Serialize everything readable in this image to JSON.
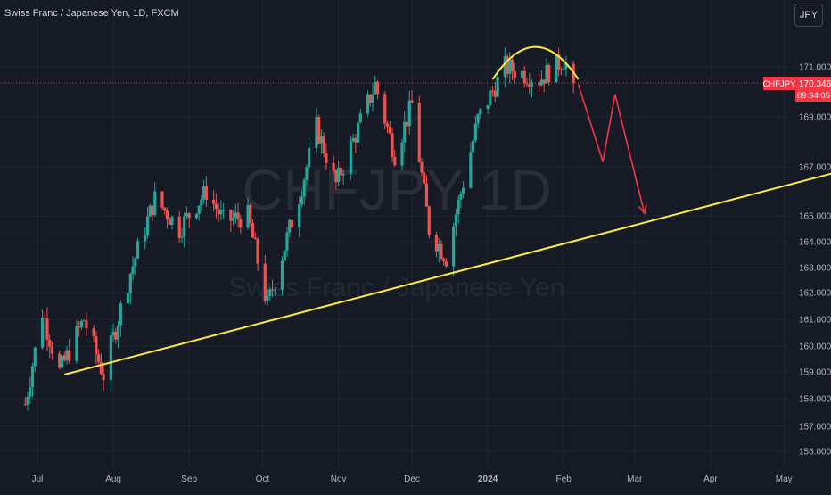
{
  "header": {
    "title": "Swiss Franc / Japanese Yen, 1D, FXCM"
  },
  "currency_button": "JPY",
  "watermark": {
    "symbol": "CHFJPY 1D",
    "name": "Swiss Franc / Japanese Yen"
  },
  "price_label": {
    "symbol": "CHFJPY",
    "price": "170.346",
    "countdown": "09:34:05"
  },
  "colors": {
    "background": "#161a25",
    "up": "#26a69a",
    "down": "#ef5350",
    "trendline": "#ffeb3b",
    "arrow": "#f23645",
    "grid": "#232733",
    "text": "#b2b5be"
  },
  "chart_data": {
    "type": "candlestick",
    "title": "Swiss Franc / Japanese Yen, 1D, FXCM",
    "y_axis_labels": [
      "171.000",
      "169.000",
      "167.000",
      "165.000",
      "164.000",
      "163.000",
      "162.000",
      "161.000",
      "160.000",
      "159.000",
      "158.000",
      "157.000",
      "156.000"
    ],
    "x_axis_labels": [
      "Jul",
      "Aug",
      "Sep",
      "Oct",
      "Nov",
      "Dec",
      "2024",
      "Feb",
      "Mar",
      "Apr",
      "May"
    ],
    "last_price": 170.346,
    "ohlc_anchors": [
      {
        "date": "2023-06-26",
        "close": 157.8
      },
      {
        "date": "2023-07-03",
        "close": 161.3
      },
      {
        "date": "2023-07-10",
        "close": 159.0
      },
      {
        "date": "2023-07-20",
        "close": 161.0
      },
      {
        "date": "2023-07-28",
        "close": 158.9
      },
      {
        "date": "2023-08-08",
        "close": 162.8
      },
      {
        "date": "2023-08-18",
        "close": 165.7
      },
      {
        "date": "2023-08-28",
        "close": 164.5
      },
      {
        "date": "2023-09-08",
        "close": 166.0
      },
      {
        "date": "2023-09-15",
        "close": 164.8
      },
      {
        "date": "2023-09-25",
        "close": 165.0
      },
      {
        "date": "2023-10-03",
        "close": 161.5
      },
      {
        "date": "2023-10-16",
        "close": 165.8
      },
      {
        "date": "2023-10-23",
        "close": 168.6
      },
      {
        "date": "2023-10-31",
        "close": 166.3
      },
      {
        "date": "2023-11-16",
        "close": 170.3
      },
      {
        "date": "2023-11-24",
        "close": 167.5
      },
      {
        "date": "2023-12-01",
        "close": 169.5
      },
      {
        "date": "2023-12-08",
        "close": 164.5
      },
      {
        "date": "2023-12-15",
        "close": 163.4
      },
      {
        "date": "2023-12-28",
        "close": 168.9
      },
      {
        "date": "2024-01-08",
        "close": 171.0
      },
      {
        "date": "2024-01-22",
        "close": 170.5
      },
      {
        "date": "2024-02-01",
        "close": 171.3
      },
      {
        "date": "2024-02-05",
        "close": 170.346
      }
    ],
    "trendline": {
      "start": {
        "date": "2023-07-12",
        "price": 158.9
      },
      "end": {
        "date": "2024-05-31",
        "price": 167.0
      }
    },
    "arc": {
      "start": "2024-01-03",
      "end": "2024-02-07",
      "peak_price": 171.8
    },
    "projection": [
      {
        "date": "2024-02-07",
        "price": 170.3
      },
      {
        "date": "2024-02-17",
        "price": 167.2
      },
      {
        "date": "2024-02-22",
        "price": 169.9
      },
      {
        "date": "2024-03-05",
        "price": 165.1
      }
    ]
  }
}
